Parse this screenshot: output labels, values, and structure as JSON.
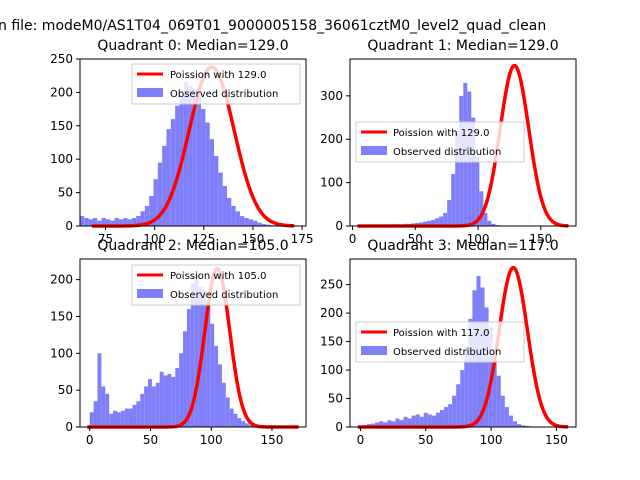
{
  "suptitle": "n file: modeM0/AS1T04_069T01_9000005158_36061cztM0_level2_quad_clean",
  "colors": {
    "histogram": "#7f7ff9",
    "poisson": "#ff0000",
    "axis": "#000000",
    "background": "#ffffff"
  },
  "chart_data": [
    {
      "type": "bar",
      "title": "Quadrant 0: Median=129.0",
      "xlim": [
        62,
        177
      ],
      "ylim": [
        0,
        250
      ],
      "xticks": [
        75,
        100,
        125,
        150,
        175
      ],
      "yticks": [
        0,
        50,
        100,
        150,
        200,
        250
      ],
      "bin_start": 62,
      "bin_width": 2.2,
      "values": [
        15,
        12,
        10,
        12,
        8,
        12,
        10,
        8,
        12,
        10,
        12,
        10,
        12,
        15,
        22,
        30,
        45,
        70,
        95,
        120,
        145,
        160,
        180,
        195,
        215,
        210,
        205,
        195,
        175,
        155,
        130,
        105,
        80,
        60,
        42,
        30,
        22,
        15,
        12,
        10,
        8,
        5,
        3,
        2,
        1,
        0
      ],
      "poisson_mean": 129.0,
      "poisson_peak": 238,
      "legend": [
        "Poission with 129.0",
        "Observed distribution"
      ]
    },
    {
      "type": "bar",
      "title": "Quadrant 1: Median=129.0",
      "xlim": [
        -2,
        178
      ],
      "ylim": [
        0,
        385
      ],
      "xticks": [
        0,
        50,
        100,
        150
      ],
      "yticks": [
        0,
        100,
        200,
        300
      ],
      "bin_start": 5,
      "bin_width": 3.2,
      "values": [
        2,
        2,
        3,
        2,
        3,
        3,
        2,
        3,
        4,
        4,
        3,
        5,
        5,
        6,
        7,
        8,
        10,
        12,
        14,
        18,
        22,
        30,
        60,
        120,
        220,
        300,
        330,
        310,
        250,
        160,
        80,
        30,
        12,
        5,
        2,
        1
      ],
      "poisson_mean": 129.0,
      "poisson_peak": 370,
      "legend": [
        "Poission with 129.0",
        "Observed distribution"
      ]
    },
    {
      "type": "bar",
      "title": "Quadrant 2: Median=105.0",
      "xlim": [
        -8,
        178
      ],
      "ylim": [
        0,
        228
      ],
      "xticks": [
        0,
        50,
        100,
        150
      ],
      "yticks": [
        0,
        50,
        100,
        150,
        200
      ],
      "bin_start": 0,
      "bin_width": 3.2,
      "values": [
        20,
        35,
        100,
        55,
        45,
        18,
        22,
        20,
        22,
        25,
        25,
        30,
        35,
        45,
        55,
        65,
        55,
        60,
        75,
        70,
        72,
        68,
        80,
        100,
        130,
        160,
        195,
        205,
        190,
        185,
        165,
        140,
        110,
        85,
        60,
        40,
        25,
        18,
        12,
        8,
        5,
        3,
        2,
        1
      ],
      "poisson_mean": 105.0,
      "poisson_peak": 215,
      "legend": [
        "Poission with 105.0",
        "Observed distribution"
      ]
    },
    {
      "type": "bar",
      "title": "Quadrant 3: Median=117.0",
      "xlim": [
        -8,
        165
      ],
      "ylim": [
        0,
        295
      ],
      "xticks": [
        0,
        50,
        100,
        150
      ],
      "yticks": [
        0,
        50,
        100,
        150,
        200,
        250
      ],
      "bin_start": 2,
      "bin_width": 3.1,
      "values": [
        3,
        5,
        6,
        8,
        10,
        8,
        12,
        10,
        15,
        12,
        18,
        15,
        20,
        22,
        18,
        25,
        22,
        20,
        25,
        30,
        35,
        40,
        55,
        75,
        100,
        140,
        190,
        240,
        265,
        245,
        210,
        175,
        130,
        90,
        55,
        35,
        20,
        10,
        5,
        3,
        2,
        1
      ],
      "poisson_mean": 117.0,
      "poisson_peak": 280,
      "legend": [
        "Poission with 117.0",
        "Observed distribution"
      ]
    }
  ]
}
